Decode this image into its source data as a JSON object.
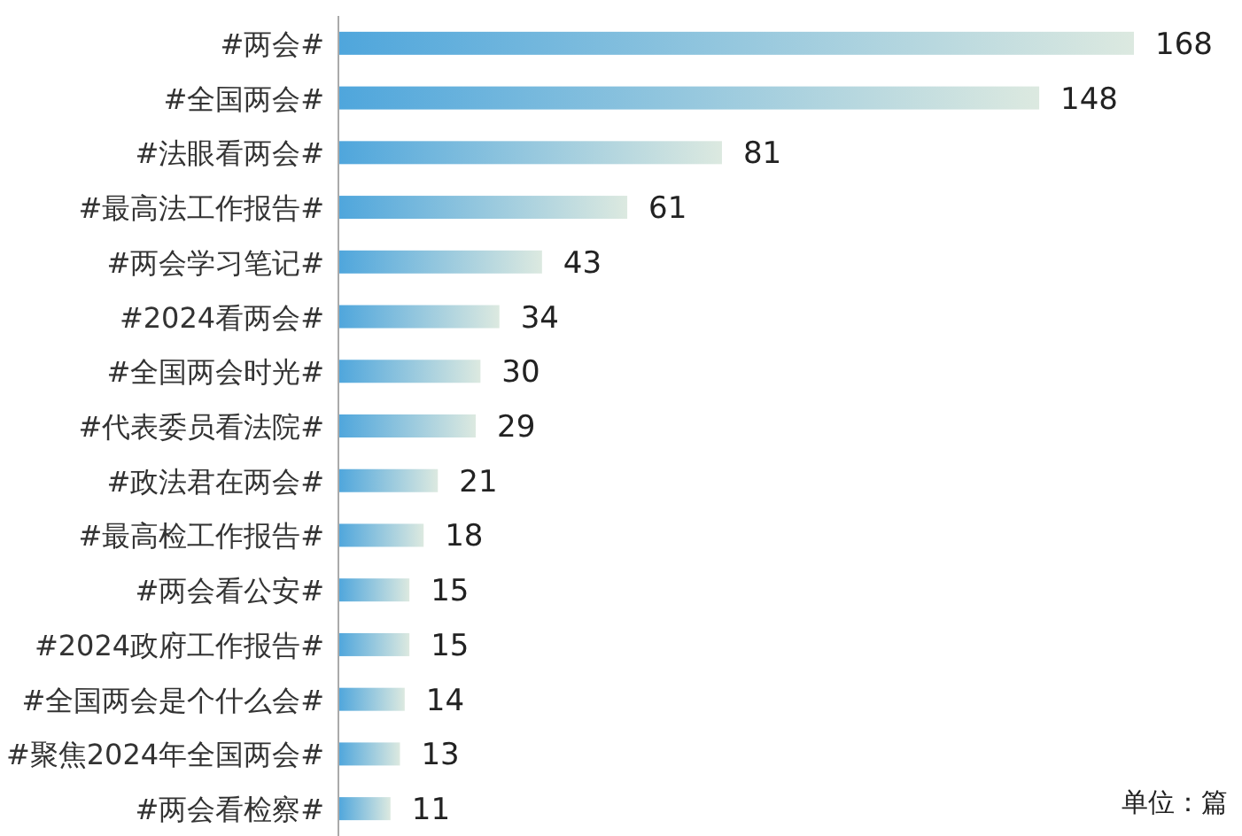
{
  "chart_data": {
    "type": "bar",
    "orientation": "horizontal",
    "data_labels": true,
    "color": "#4fa6dc",
    "categories": [
      "#两会#",
      "#全国两会#",
      "#法眼看两会#",
      "#最高法工作报告#",
      "#两会学习笔记#",
      "#2024看两会#",
      "#全国两会时光#",
      "#代表委员看法院#",
      "#政法君在两会#",
      "#最高检工作报告#",
      "#两会看公安#",
      "#2024政府工作报告#",
      "#全国两会是个什么会#",
      "#聚焦2024年全国两会#",
      "#两会看检察#"
    ],
    "values": [
      168,
      148,
      81,
      61,
      43,
      34,
      30,
      29,
      21,
      18,
      15,
      15,
      14,
      13,
      11
    ],
    "annotations": [
      "单位：篇"
    ]
  }
}
